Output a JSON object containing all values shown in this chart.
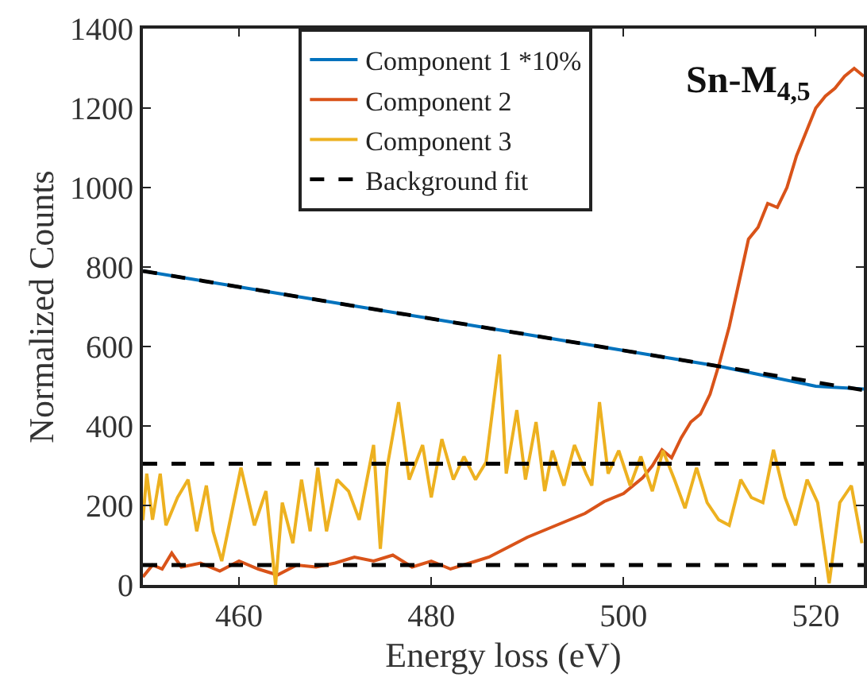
{
  "chart_data": {
    "type": "line",
    "xlabel": "Energy loss (eV)",
    "ylabel": "Normalized Counts",
    "annotations": [
      "Sn-M$_{4,5}$"
    ],
    "xlim": [
      450,
      525
    ],
    "ylim": [
      0,
      1400
    ],
    "xticks": [
      460,
      480,
      500,
      520
    ],
    "yticks": [
      0,
      200,
      400,
      600,
      800,
      1000,
      1200,
      1400
    ],
    "grid": false,
    "legend": "top",
    "marker": "none",
    "series": [
      {
        "name": "Component 1 *10%",
        "color": "#0072bd",
        "line_style": "solid",
        "x": [
          450,
          455,
          460,
          465,
          470,
          475,
          480,
          485,
          490,
          495,
          500,
          505,
          510,
          515,
          520,
          525
        ],
        "values": [
          790,
          770,
          750,
          730,
          710,
          690,
          670,
          650,
          630,
          610,
          590,
          570,
          550,
          525,
          500,
          493
        ]
      },
      {
        "name": "Component 2",
        "color": "#d95319",
        "line_style": "solid",
        "x": [
          450,
          451,
          452,
          453,
          454,
          456,
          458,
          460,
          462,
          464,
          466,
          468,
          470,
          472,
          474,
          476,
          478,
          480,
          482,
          484,
          486,
          488,
          490,
          492,
          494,
          496,
          498,
          500,
          502,
          503,
          504,
          505,
          506,
          507,
          508,
          509,
          510,
          511,
          512,
          513,
          514,
          515,
          516,
          517,
          518,
          519,
          520,
          521,
          522,
          523,
          524,
          525
        ],
        "values": [
          20,
          50,
          40,
          80,
          45,
          55,
          35,
          60,
          40,
          25,
          50,
          45,
          55,
          70,
          60,
          75,
          45,
          60,
          40,
          55,
          70,
          95,
          120,
          140,
          160,
          180,
          210,
          230,
          270,
          300,
          340,
          320,
          370,
          410,
          430,
          480,
          560,
          650,
          760,
          870,
          900,
          960,
          950,
          1000,
          1080,
          1140,
          1200,
          1230,
          1250,
          1280,
          1300,
          1280
        ]
      },
      {
        "name": "Component 3",
        "color": "#edb120",
        "line_style": "solid",
        "x": [
          450.0,
          450.4,
          451.0,
          451.8,
          452.4,
          453.6,
          454.7,
          455.6,
          456.6,
          457.3,
          458.2,
          460.2,
          461.6,
          462.8,
          463.8,
          464.5,
          465.6,
          466.5,
          467.4,
          468.2,
          469.1,
          470.2,
          471.4,
          472.5,
          474.0,
          474.7,
          475.4,
          476.6,
          477.7,
          479.1,
          480.0,
          481.1,
          482.3,
          483.4,
          484.6,
          485.7,
          487.1,
          487.8,
          488.9,
          489.8,
          490.9,
          491.8,
          492.6,
          493.8,
          494.9,
          496.1,
          496.7,
          497.5,
          498.4,
          499.5,
          500.7,
          501.8,
          503.0,
          504.1,
          505.3,
          506.4,
          507.6,
          508.7,
          509.9,
          511.0,
          512.2,
          513.3,
          514.5,
          515.6,
          516.8,
          517.9,
          519.1,
          520.2,
          521.4,
          522.5,
          523.7,
          524.8
        ],
        "values": [
          163,
          280,
          164,
          280,
          150,
          220,
          265,
          135,
          250,
          135,
          60,
          295,
          150,
          236,
          0,
          207,
          105,
          265,
          135,
          295,
          135,
          265,
          236,
          164,
          352,
          91,
          295,
          460,
          265,
          352,
          220,
          367,
          265,
          323,
          265,
          309,
          580,
          280,
          440,
          265,
          410,
          236,
          338,
          250,
          352,
          280,
          250,
          460,
          280,
          338,
          250,
          323,
          236,
          338,
          265,
          193,
          295,
          207,
          164,
          150,
          265,
          220,
          207,
          340,
          220,
          150,
          265,
          207,
          4,
          207,
          250,
          105
        ]
      },
      {
        "name": "Background fit",
        "color": "#000000",
        "line_style": "dashed",
        "x": [
          450,
          525
        ],
        "values": [
          790,
          490
        ]
      },
      {
        "color": "#000000",
        "line_style": "dashed",
        "x": [
          450,
          525
        ],
        "values": [
          305,
          305
        ]
      },
      {
        "color": "#000000",
        "line_style": "dashed",
        "x": [
          450,
          525
        ],
        "values": [
          50,
          50
        ]
      }
    ]
  }
}
